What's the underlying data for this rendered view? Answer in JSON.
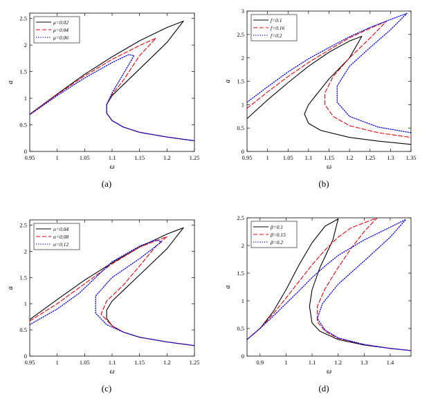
{
  "colors": {
    "series1": "#000000",
    "series2": "#e8000b",
    "series3": "#0000ee",
    "axis": "#000000",
    "legend_border": "#000000"
  },
  "chart_data": [
    {
      "type": "line",
      "caption": "(a)",
      "xlabel": "ω",
      "ylabel": "a",
      "xlim": [
        0.95,
        1.25
      ],
      "ylim": [
        0,
        2.6
      ],
      "xticks": [
        0.95,
        1,
        1.05,
        1.1,
        1.15,
        1.2,
        1.25
      ],
      "xtick_labels": [
        "0.95",
        "1",
        "1.05",
        "1.1",
        "1.15",
        "1.2",
        "1.25"
      ],
      "yticks": [
        0,
        0.5,
        1,
        1.5,
        2,
        2.5
      ],
      "ytick_labels": [
        "0",
        "0.5",
        "1",
        "1.5",
        "2",
        "2.5"
      ],
      "legend_position": "top-left",
      "series": [
        {
          "name": "μ=0.02",
          "style": "solid",
          "color": "#000000",
          "points": [
            [
              0.95,
              0.7
            ],
            [
              1.0,
              1.08
            ],
            [
              1.05,
              1.45
            ],
            [
              1.1,
              1.78
            ],
            [
              1.15,
              2.08
            ],
            [
              1.2,
              2.33
            ],
            [
              1.23,
              2.45
            ],
            [
              1.2,
              2.05
            ],
            [
              1.15,
              1.55
            ],
            [
              1.12,
              1.25
            ],
            [
              1.1,
              1.05
            ],
            [
              1.09,
              0.88
            ],
            [
              1.09,
              0.72
            ],
            [
              1.1,
              0.58
            ],
            [
              1.12,
              0.46
            ],
            [
              1.15,
              0.36
            ],
            [
              1.2,
              0.27
            ],
            [
              1.25,
              0.2
            ]
          ]
        },
        {
          "name": "μ=0.04",
          "style": "dashed",
          "color": "#e8000b",
          "points": [
            [
              0.95,
              0.7
            ],
            [
              1.0,
              1.07
            ],
            [
              1.05,
              1.42
            ],
            [
              1.1,
              1.73
            ],
            [
              1.15,
              1.99
            ],
            [
              1.18,
              2.13
            ],
            [
              1.15,
              1.8
            ],
            [
              1.12,
              1.33
            ],
            [
              1.1,
              1.07
            ],
            [
              1.09,
              0.88
            ],
            [
              1.09,
              0.72
            ],
            [
              1.1,
              0.58
            ],
            [
              1.12,
              0.46
            ],
            [
              1.15,
              0.36
            ],
            [
              1.2,
              0.27
            ],
            [
              1.25,
              0.2
            ]
          ]
        },
        {
          "name": "μ=0.06",
          "style": "dotted",
          "color": "#0000ee",
          "points": [
            [
              0.95,
              0.69
            ],
            [
              1.0,
              1.05
            ],
            [
              1.05,
              1.38
            ],
            [
              1.1,
              1.67
            ],
            [
              1.13,
              1.82
            ],
            [
              1.14,
              1.8
            ],
            [
              1.12,
              1.45
            ],
            [
              1.1,
              1.1
            ],
            [
              1.09,
              0.88
            ],
            [
              1.09,
              0.72
            ],
            [
              1.1,
              0.58
            ],
            [
              1.12,
              0.46
            ],
            [
              1.15,
              0.36
            ],
            [
              1.2,
              0.27
            ],
            [
              1.25,
              0.2
            ]
          ]
        }
      ]
    },
    {
      "type": "line",
      "caption": "(b)",
      "xlabel": "ω",
      "ylabel": "a",
      "xlim": [
        0.95,
        1.35
      ],
      "ylim": [
        0,
        3
      ],
      "xticks": [
        0.95,
        1,
        1.05,
        1.1,
        1.15,
        1.2,
        1.25,
        1.3,
        1.35
      ],
      "xtick_labels": [
        "0.95",
        "1",
        "1.05",
        "1.1",
        "1.15",
        "1.2",
        "1.25",
        "1.3",
        "1.35"
      ],
      "yticks": [
        0,
        0.5,
        1,
        1.5,
        2,
        2.5,
        3
      ],
      "ytick_labels": [
        "0",
        "0.5",
        "1",
        "1.5",
        "2",
        "2.5",
        "3"
      ],
      "legend_position": "top-left",
      "series": [
        {
          "name": "f=0.1",
          "style": "solid",
          "color": "#000000",
          "points": [
            [
              0.95,
              0.7
            ],
            [
              1.0,
              1.1
            ],
            [
              1.05,
              1.47
            ],
            [
              1.1,
              1.82
            ],
            [
              1.15,
              2.12
            ],
            [
              1.2,
              2.36
            ],
            [
              1.23,
              2.46
            ],
            [
              1.2,
              2.0
            ],
            [
              1.15,
              1.55
            ],
            [
              1.12,
              1.22
            ],
            [
              1.1,
              1.0
            ],
            [
              1.09,
              0.8
            ],
            [
              1.1,
              0.6
            ],
            [
              1.13,
              0.45
            ],
            [
              1.2,
              0.3
            ],
            [
              1.27,
              0.22
            ],
            [
              1.35,
              0.15
            ]
          ]
        },
        {
          "name": "f=0.16",
          "style": "dashed",
          "color": "#e8000b",
          "points": [
            [
              0.95,
              0.92
            ],
            [
              1.0,
              1.27
            ],
            [
              1.05,
              1.6
            ],
            [
              1.1,
              1.9
            ],
            [
              1.15,
              2.17
            ],
            [
              1.2,
              2.43
            ],
            [
              1.25,
              2.63
            ],
            [
              1.29,
              2.78
            ],
            [
              1.25,
              2.42
            ],
            [
              1.2,
              2.0
            ],
            [
              1.16,
              1.6
            ],
            [
              1.14,
              1.25
            ],
            [
              1.14,
              1.0
            ],
            [
              1.16,
              0.75
            ],
            [
              1.2,
              0.55
            ],
            [
              1.27,
              0.4
            ],
            [
              1.35,
              0.3
            ]
          ]
        },
        {
          "name": "f=0.2",
          "style": "dotted",
          "color": "#0000ee",
          "points": [
            [
              0.95,
              1.05
            ],
            [
              1.0,
              1.38
            ],
            [
              1.05,
              1.7
            ],
            [
              1.1,
              1.98
            ],
            [
              1.15,
              2.22
            ],
            [
              1.2,
              2.45
            ],
            [
              1.25,
              2.65
            ],
            [
              1.3,
              2.82
            ],
            [
              1.34,
              2.95
            ],
            [
              1.3,
              2.6
            ],
            [
              1.25,
              2.22
            ],
            [
              1.2,
              1.82
            ],
            [
              1.17,
              1.4
            ],
            [
              1.17,
              1.05
            ],
            [
              1.2,
              0.75
            ],
            [
              1.27,
              0.52
            ],
            [
              1.35,
              0.4
            ]
          ]
        }
      ]
    },
    {
      "type": "line",
      "caption": "(c)",
      "xlabel": "ω",
      "ylabel": "a",
      "xlim": [
        0.95,
        1.25
      ],
      "ylim": [
        0,
        2.6
      ],
      "xticks": [
        0.95,
        1,
        1.05,
        1.1,
        1.15,
        1.2,
        1.25
      ],
      "xtick_labels": [
        "0.95",
        "1",
        "1.05",
        "1.1",
        "1.15",
        "1.2",
        "1.25"
      ],
      "yticks": [
        0,
        0.5,
        1,
        1.5,
        2,
        2.5
      ],
      "ytick_labels": [
        "0",
        "0.5",
        "1",
        "1.5",
        "2",
        "2.5"
      ],
      "legend_position": "top-left",
      "series": [
        {
          "name": "α=0.04",
          "style": "solid",
          "color": "#000000",
          "points": [
            [
              0.95,
              0.7
            ],
            [
              1.0,
              1.08
            ],
            [
              1.05,
              1.45
            ],
            [
              1.1,
              1.78
            ],
            [
              1.15,
              2.08
            ],
            [
              1.2,
              2.33
            ],
            [
              1.23,
              2.45
            ],
            [
              1.2,
              2.05
            ],
            [
              1.15,
              1.55
            ],
            [
              1.12,
              1.25
            ],
            [
              1.1,
              1.05
            ],
            [
              1.09,
              0.88
            ],
            [
              1.09,
              0.72
            ],
            [
              1.1,
              0.58
            ],
            [
              1.12,
              0.46
            ],
            [
              1.15,
              0.36
            ],
            [
              1.2,
              0.27
            ],
            [
              1.25,
              0.2
            ]
          ]
        },
        {
          "name": "α=0.08",
          "style": "dashed",
          "color": "#e8000b",
          "points": [
            [
              0.95,
              0.67
            ],
            [
              1.0,
              1.0
            ],
            [
              1.05,
              1.38
            ],
            [
              1.1,
              1.76
            ],
            [
              1.15,
              2.08
            ],
            [
              1.2,
              2.28
            ],
            [
              1.18,
              2.1
            ],
            [
              1.15,
              1.72
            ],
            [
              1.12,
              1.35
            ],
            [
              1.09,
              1.05
            ],
            [
              1.08,
              0.8
            ],
            [
              1.1,
              0.58
            ],
            [
              1.12,
              0.46
            ],
            [
              1.15,
              0.36
            ],
            [
              1.2,
              0.27
            ],
            [
              1.25,
              0.2
            ]
          ]
        },
        {
          "name": "α=0.12",
          "style": "dotted",
          "color": "#0000ee",
          "points": [
            [
              0.95,
              0.6
            ],
            [
              1.0,
              0.9
            ],
            [
              1.04,
              1.2
            ],
            [
              1.07,
              1.5
            ],
            [
              1.1,
              1.8
            ],
            [
              1.15,
              2.1
            ],
            [
              1.18,
              2.22
            ],
            [
              1.19,
              2.18
            ],
            [
              1.15,
              1.86
            ],
            [
              1.1,
              1.5
            ],
            [
              1.07,
              1.15
            ],
            [
              1.07,
              0.82
            ],
            [
              1.09,
              0.6
            ],
            [
              1.12,
              0.46
            ],
            [
              1.15,
              0.36
            ],
            [
              1.2,
              0.27
            ],
            [
              1.25,
              0.2
            ]
          ]
        }
      ]
    },
    {
      "type": "line",
      "caption": "(d)",
      "xlabel": "ω",
      "ylabel": "a",
      "xlim": [
        0.85,
        1.48
      ],
      "ylim": [
        0,
        2.5
      ],
      "xticks": [
        0.9,
        1,
        1.1,
        1.2,
        1.3,
        1.4
      ],
      "xtick_labels": [
        "0.9",
        "1",
        "1.1",
        "1.2",
        "1.3",
        "1.4"
      ],
      "yticks": [
        0,
        0.5,
        1,
        1.5,
        2,
        2.5
      ],
      "ytick_labels": [
        "0",
        "0.5",
        "1",
        "1.5",
        "2",
        "2.5"
      ],
      "legend_position": "top-left",
      "series": [
        {
          "name": "β=0.1",
          "style": "solid",
          "color": "#000000",
          "points": [
            [
              0.85,
              0.3
            ],
            [
              0.9,
              0.5
            ],
            [
              0.95,
              0.8
            ],
            [
              1.0,
              1.2
            ],
            [
              1.05,
              1.65
            ],
            [
              1.1,
              2.05
            ],
            [
              1.15,
              2.35
            ],
            [
              1.2,
              2.48
            ],
            [
              1.18,
              2.1
            ],
            [
              1.13,
              1.6
            ],
            [
              1.1,
              1.2
            ],
            [
              1.09,
              0.9
            ],
            [
              1.1,
              0.6
            ],
            [
              1.13,
              0.45
            ],
            [
              1.2,
              0.3
            ],
            [
              1.3,
              0.2
            ],
            [
              1.4,
              0.14
            ],
            [
              1.48,
              0.1
            ]
          ]
        },
        {
          "name": "β=0.15",
          "style": "dashed",
          "color": "#e8000b",
          "points": [
            [
              0.85,
              0.3
            ],
            [
              0.9,
              0.5
            ],
            [
              0.95,
              0.76
            ],
            [
              1.0,
              1.05
            ],
            [
              1.05,
              1.35
            ],
            [
              1.1,
              1.65
            ],
            [
              1.15,
              1.92
            ],
            [
              1.2,
              2.15
            ],
            [
              1.25,
              2.32
            ],
            [
              1.35,
              2.5
            ],
            [
              1.3,
              2.25
            ],
            [
              1.25,
              1.95
            ],
            [
              1.2,
              1.6
            ],
            [
              1.15,
              1.22
            ],
            [
              1.12,
              0.9
            ],
            [
              1.12,
              0.62
            ],
            [
              1.15,
              0.45
            ],
            [
              1.2,
              0.32
            ],
            [
              1.3,
              0.21
            ],
            [
              1.4,
              0.14
            ],
            [
              1.48,
              0.1
            ]
          ]
        },
        {
          "name": "β=0.2",
          "style": "dotted",
          "color": "#0000ee",
          "points": [
            [
              0.85,
              0.3
            ],
            [
              0.9,
              0.5
            ],
            [
              0.95,
              0.72
            ],
            [
              1.0,
              0.95
            ],
            [
              1.05,
              1.18
            ],
            [
              1.1,
              1.42
            ],
            [
              1.15,
              1.63
            ],
            [
              1.2,
              1.82
            ],
            [
              1.3,
              2.1
            ],
            [
              1.4,
              2.33
            ],
            [
              1.46,
              2.47
            ],
            [
              1.4,
              2.15
            ],
            [
              1.3,
              1.72
            ],
            [
              1.2,
              1.3
            ],
            [
              1.14,
              0.95
            ],
            [
              1.12,
              0.68
            ],
            [
              1.15,
              0.47
            ],
            [
              1.2,
              0.33
            ],
            [
              1.3,
              0.21
            ],
            [
              1.4,
              0.14
            ],
            [
              1.48,
              0.1
            ]
          ]
        }
      ]
    }
  ]
}
